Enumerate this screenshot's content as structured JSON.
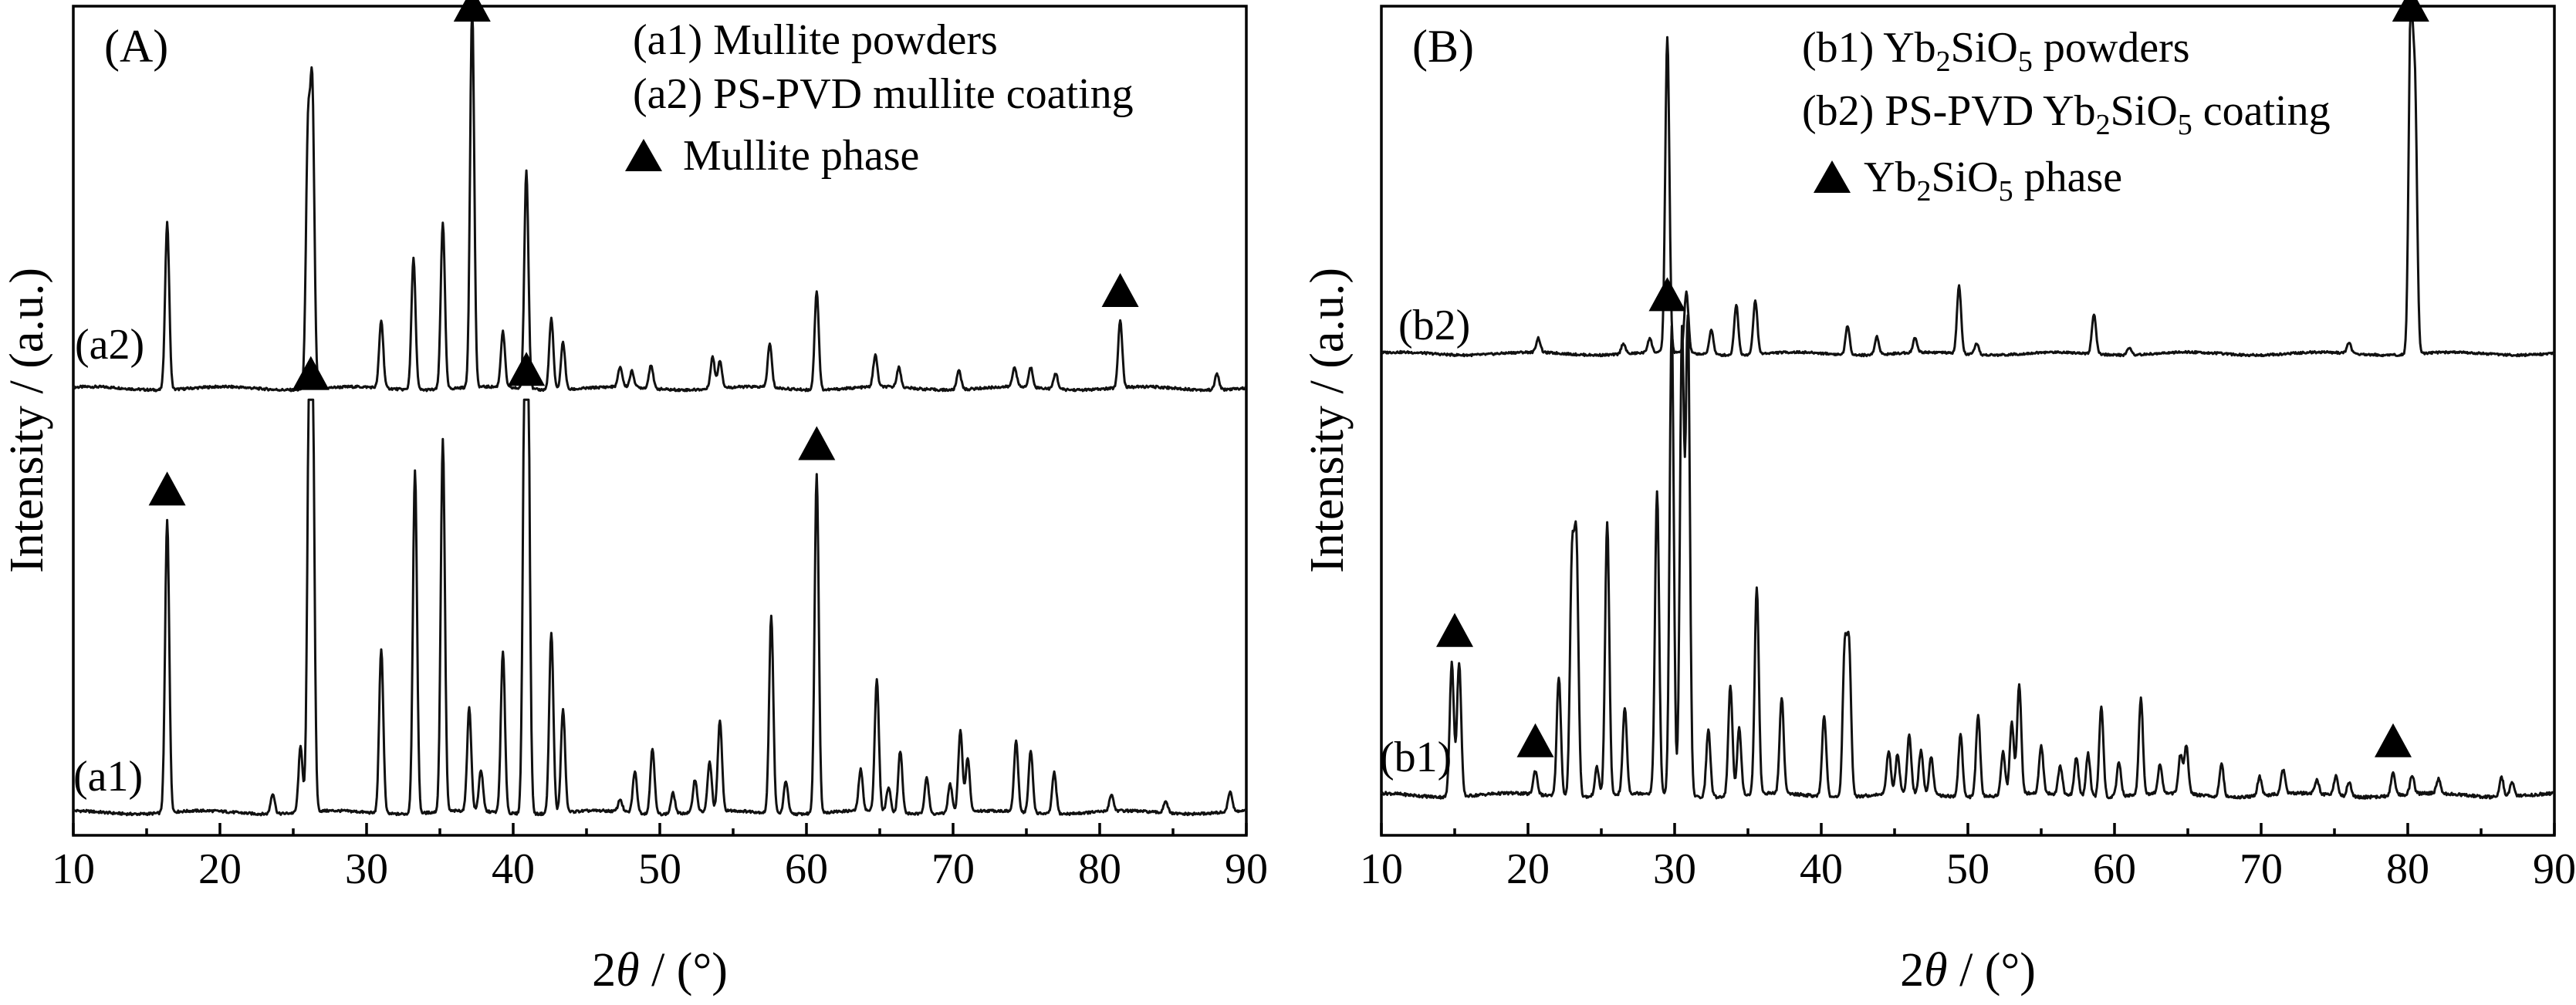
{
  "chart_data": [
    {
      "type": "line",
      "panel_label": "(A)",
      "xlabel_parts": [
        "2",
        "θ",
        " / (°)"
      ],
      "ylabel": "Intensity / (a.u.)",
      "xlim": [
        10,
        90
      ],
      "xticks": [
        "10",
        "20",
        "30",
        "40",
        "50",
        "60",
        "70",
        "80",
        "90"
      ],
      "legend": {
        "placement": "top-right",
        "items": [
          {
            "text": "(a1) Mullite powders"
          },
          {
            "text": "(a2) PS-PVD mullite coating"
          },
          {
            "text": "Mullite phase",
            "marker": "triangle"
          }
        ]
      },
      "series": [
        {
          "name": "(a2)",
          "baseline": 0.1,
          "peaks": [
            [
              16.4,
              0.42
            ],
            [
              26.0,
              0.62
            ],
            [
              26.3,
              0.73
            ],
            [
              31.0,
              0.17
            ],
            [
              33.2,
              0.33
            ],
            [
              35.2,
              0.42
            ],
            [
              37.2,
              0.96
            ],
            [
              39.3,
              0.14
            ],
            [
              40.9,
              0.55
            ],
            [
              42.6,
              0.18
            ],
            [
              43.4,
              0.12
            ],
            [
              47.3,
              0.05
            ],
            [
              48.1,
              0.04
            ],
            [
              49.4,
              0.06
            ],
            [
              53.6,
              0.08
            ],
            [
              54.1,
              0.07
            ],
            [
              57.5,
              0.11
            ],
            [
              60.7,
              0.25
            ],
            [
              64.7,
              0.08
            ],
            [
              66.3,
              0.05
            ],
            [
              70.4,
              0.05
            ],
            [
              74.2,
              0.05
            ],
            [
              75.3,
              0.05
            ],
            [
              77.0,
              0.04
            ],
            [
              81.4,
              0.17
            ],
            [
              88.0,
              0.04
            ]
          ]
        },
        {
          "name": "(a1)",
          "baseline": 0.05,
          "peaks": [
            [
              16.4,
              0.71
            ],
            [
              23.6,
              0.05
            ],
            [
              25.5,
              0.16
            ],
            [
              26.1,
              0.95
            ],
            [
              26.3,
              0.99
            ],
            [
              31.0,
              0.4
            ],
            [
              33.3,
              0.83
            ],
            [
              35.2,
              0.9
            ],
            [
              37.0,
              0.25
            ],
            [
              37.8,
              0.1
            ],
            [
              39.3,
              0.39
            ],
            [
              40.8,
              1.0
            ],
            [
              41.0,
              0.98
            ],
            [
              42.6,
              0.44
            ],
            [
              43.4,
              0.25
            ],
            [
              47.3,
              0.03
            ],
            [
              48.3,
              0.1
            ],
            [
              49.5,
              0.16
            ],
            [
              50.9,
              0.05
            ],
            [
              52.4,
              0.08
            ],
            [
              53.4,
              0.12
            ],
            [
              54.1,
              0.22
            ],
            [
              57.6,
              0.48
            ],
            [
              58.6,
              0.08
            ],
            [
              60.7,
              0.82
            ],
            [
              63.7,
              0.1
            ],
            [
              64.8,
              0.32
            ],
            [
              65.6,
              0.06
            ],
            [
              66.4,
              0.15
            ],
            [
              68.2,
              0.09
            ],
            [
              69.8,
              0.07
            ],
            [
              70.5,
              0.2
            ],
            [
              71.0,
              0.13
            ],
            [
              74.3,
              0.17
            ],
            [
              75.3,
              0.15
            ],
            [
              76.9,
              0.1
            ],
            [
              80.8,
              0.04
            ],
            [
              84.5,
              0.03
            ],
            [
              88.9,
              0.05
            ]
          ]
        }
      ],
      "phase_markers": [
        16.4,
        26.2,
        37.2,
        40.9,
        60.7,
        81.4
      ]
    },
    {
      "type": "line",
      "panel_label": "(B)",
      "xlabel_parts": [
        "2",
        "θ",
        " / (°)"
      ],
      "ylabel": "Intensity / (a.u.)",
      "xlim": [
        10,
        90
      ],
      "xticks": [
        "10",
        "20",
        "30",
        "40",
        "50",
        "60",
        "70",
        "80",
        "90"
      ],
      "legend": {
        "placement": "top-right",
        "items": [
          {
            "prefix": "(b1) Yb",
            "sub1": "2",
            "mid": "SiO",
            "sub2": "5",
            "suffix": " powders"
          },
          {
            "prefix": "(b2) PS-PVD Yb",
            "sub1": "2",
            "mid": "SiO",
            "sub2": "5",
            "suffix": " coating"
          },
          {
            "prefix": "Yb",
            "sub1": "2",
            "mid": "SiO",
            "sub2": "5",
            "suffix": " phase",
            "marker": "triangle"
          }
        ]
      },
      "series": [
        {
          "name": "(b2)",
          "baseline": 0.1,
          "peaks": [
            [
              20.7,
              0.04
            ],
            [
              26.5,
              0.03
            ],
            [
              28.3,
              0.04
            ],
            [
              29.5,
              0.88
            ],
            [
              30.8,
              0.17
            ],
            [
              32.5,
              0.07
            ],
            [
              34.2,
              0.14
            ],
            [
              35.5,
              0.15
            ],
            [
              41.8,
              0.08
            ],
            [
              43.8,
              0.05
            ],
            [
              46.4,
              0.04
            ],
            [
              49.4,
              0.19
            ],
            [
              50.6,
              0.03
            ],
            [
              58.6,
              0.11
            ],
            [
              61.0,
              0.02
            ],
            [
              76.0,
              0.03
            ],
            [
              80.2,
              0.93
            ],
            [
              80.5,
              0.7
            ]
          ]
        },
        {
          "name": "(b1)",
          "baseline": 0.05,
          "peaks": [
            [
              14.8,
              0.28
            ],
            [
              15.3,
              0.28
            ],
            [
              20.5,
              0.05
            ],
            [
              22.1,
              0.25
            ],
            [
              23.0,
              0.48
            ],
            [
              23.3,
              0.51
            ],
            [
              24.7,
              0.06
            ],
            [
              25.4,
              0.57
            ],
            [
              26.6,
              0.18
            ],
            [
              28.8,
              0.63
            ],
            [
              29.8,
              0.98
            ],
            [
              30.5,
              0.96
            ],
            [
              30.9,
              1.0
            ],
            [
              32.3,
              0.14
            ],
            [
              33.8,
              0.23
            ],
            [
              34.4,
              0.14
            ],
            [
              35.6,
              0.43
            ],
            [
              37.3,
              0.2
            ],
            [
              40.2,
              0.17
            ],
            [
              41.6,
              0.3
            ],
            [
              41.9,
              0.3
            ],
            [
              44.6,
              0.09
            ],
            [
              45.2,
              0.08
            ],
            [
              46.0,
              0.12
            ],
            [
              46.8,
              0.09
            ],
            [
              47.5,
              0.08
            ],
            [
              49.5,
              0.13
            ],
            [
              50.7,
              0.17
            ],
            [
              52.4,
              0.09
            ],
            [
              53.0,
              0.15
            ],
            [
              53.5,
              0.23
            ],
            [
              55.0,
              0.1
            ],
            [
              56.3,
              0.06
            ],
            [
              57.4,
              0.08
            ],
            [
              58.2,
              0.09
            ],
            [
              59.1,
              0.19
            ],
            [
              60.3,
              0.07
            ],
            [
              61.8,
              0.2
            ],
            [
              63.1,
              0.06
            ],
            [
              64.5,
              0.08
            ],
            [
              64.9,
              0.1
            ],
            [
              67.3,
              0.07
            ],
            [
              69.9,
              0.04
            ],
            [
              71.5,
              0.05
            ],
            [
              73.8,
              0.03
            ],
            [
              75.1,
              0.04
            ],
            [
              76.0,
              0.03
            ],
            [
              79.0,
              0.05
            ],
            [
              80.3,
              0.04
            ],
            [
              82.1,
              0.03
            ],
            [
              86.4,
              0.04
            ],
            [
              87.1,
              0.03
            ]
          ]
        }
      ],
      "phase_markers": [
        15.0,
        20.5,
        29.5,
        79.0,
        80.2
      ]
    }
  ]
}
